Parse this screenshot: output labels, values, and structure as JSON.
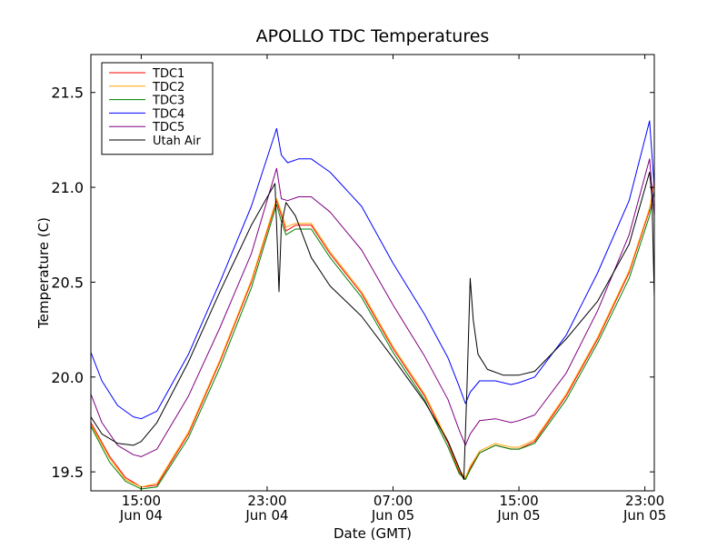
{
  "chart_data": {
    "type": "line",
    "title": "APOLLO TDC Temperatures",
    "xlabel": "Date (GMT)",
    "ylabel": "Temperature (C)",
    "x_unit": "hours since Jun 04 00:00 GMT",
    "xlim": [
      11.8,
      47.6
    ],
    "ylim": [
      19.4,
      21.7
    ],
    "grid": false,
    "legend_position": "top-left",
    "x_ticks": [
      {
        "value": 15,
        "time": "15:00",
        "date": "Jun 04"
      },
      {
        "value": 23,
        "time": "23:00",
        "date": "Jun 04"
      },
      {
        "value": 31,
        "time": "07:00",
        "date": "Jun 05"
      },
      {
        "value": 39,
        "time": "15:00",
        "date": "Jun 05"
      },
      {
        "value": 47,
        "time": "23:00",
        "date": "Jun 05"
      }
    ],
    "y_ticks": [
      {
        "value": 19.5,
        "label": "19.5"
      },
      {
        "value": 20.0,
        "label": "20.0"
      },
      {
        "value": 20.5,
        "label": "20.5"
      },
      {
        "value": 21.0,
        "label": "21.0"
      },
      {
        "value": 21.5,
        "label": "21.5"
      }
    ],
    "series": [
      {
        "name": "TDC1",
        "color": "#ff0000",
        "x": [
          11.8,
          13,
          14,
          15,
          16,
          18,
          20,
          22,
          23.6,
          23.9,
          24.2,
          24.8,
          25.8,
          27,
          29,
          31,
          33,
          34.5,
          35.2,
          35.6,
          35.9,
          36.5,
          37.5,
          38.5,
          39,
          40,
          42,
          44,
          46,
          47.3,
          47.6
        ],
        "y": [
          19.76,
          19.58,
          19.47,
          19.42,
          19.43,
          19.7,
          20.08,
          20.5,
          20.93,
          20.85,
          20.77,
          20.8,
          20.8,
          20.65,
          20.44,
          20.15,
          19.9,
          19.65,
          19.5,
          19.46,
          19.52,
          19.6,
          19.64,
          19.62,
          19.62,
          19.66,
          19.9,
          20.2,
          20.55,
          20.88,
          21.03
        ]
      },
      {
        "name": "TDC2",
        "color": "#ffa500",
        "x": [
          11.8,
          13,
          14,
          15,
          16,
          18,
          20,
          22,
          23.6,
          23.9,
          24.2,
          24.8,
          25.8,
          27,
          29,
          31,
          33,
          34.5,
          35.2,
          35.6,
          35.9,
          36.5,
          37.5,
          38.5,
          39,
          40,
          42,
          44,
          46,
          47.3,
          47.6
        ],
        "y": [
          19.75,
          19.57,
          19.46,
          19.42,
          19.44,
          19.71,
          20.09,
          20.51,
          20.94,
          20.87,
          20.79,
          20.81,
          20.81,
          20.66,
          20.45,
          20.16,
          19.91,
          19.66,
          19.51,
          19.47,
          19.53,
          19.61,
          19.65,
          19.63,
          19.63,
          19.67,
          19.91,
          20.21,
          20.56,
          20.89,
          21.02
        ]
      },
      {
        "name": "TDC3",
        "color": "#008000",
        "x": [
          11.8,
          13,
          14,
          15,
          16,
          18,
          20,
          22,
          23.6,
          23.9,
          24.2,
          24.8,
          25.8,
          27,
          29,
          31,
          33,
          34.5,
          35.2,
          35.6,
          35.9,
          36.5,
          37.5,
          38.5,
          39,
          40,
          42,
          44,
          46,
          47.3,
          47.6
        ],
        "y": [
          19.74,
          19.55,
          19.45,
          19.41,
          19.42,
          19.68,
          20.05,
          20.47,
          20.91,
          20.82,
          20.75,
          20.78,
          20.78,
          20.63,
          20.42,
          20.13,
          19.88,
          19.63,
          19.49,
          19.46,
          19.51,
          19.6,
          19.64,
          19.62,
          19.62,
          19.65,
          19.88,
          20.18,
          20.52,
          20.85,
          20.98
        ]
      },
      {
        "name": "TDC4",
        "color": "#0000ff",
        "x": [
          11.8,
          12.5,
          13.5,
          14.5,
          15,
          16,
          18,
          20,
          22,
          23.6,
          23.9,
          24.3,
          25,
          25.8,
          27,
          29,
          31,
          33,
          34.5,
          35.2,
          35.6,
          35.9,
          36.5,
          37.5,
          38.5,
          39,
          40,
          42,
          44,
          46,
          47.3,
          47.6
        ],
        "y": [
          20.13,
          19.98,
          19.85,
          19.79,
          19.78,
          19.82,
          20.12,
          20.5,
          20.9,
          21.31,
          21.17,
          21.13,
          21.15,
          21.15,
          21.08,
          20.9,
          20.6,
          20.33,
          20.1,
          19.95,
          19.86,
          19.92,
          19.98,
          19.98,
          19.96,
          19.97,
          20.0,
          20.22,
          20.55,
          20.93,
          21.35,
          21.0
        ]
      },
      {
        "name": "TDC5",
        "color": "#800080",
        "x": [
          11.8,
          12.5,
          13.5,
          14.5,
          15,
          16,
          18,
          20,
          22,
          23.6,
          23.9,
          24.3,
          25,
          25.8,
          27,
          29,
          31,
          33,
          34.5,
          35.2,
          35.6,
          35.9,
          36.5,
          37.5,
          38.5,
          39,
          40,
          42,
          44,
          46,
          47.3,
          47.6
        ],
        "y": [
          19.91,
          19.76,
          19.64,
          19.59,
          19.58,
          19.62,
          19.9,
          20.26,
          20.65,
          21.1,
          20.94,
          20.93,
          20.95,
          20.95,
          20.87,
          20.67,
          20.38,
          20.11,
          19.88,
          19.72,
          19.64,
          19.7,
          19.77,
          19.78,
          19.76,
          19.77,
          19.8,
          20.02,
          20.35,
          20.75,
          21.15,
          20.85
        ]
      },
      {
        "name": "Utah Air",
        "color": "#000000",
        "x": [
          11.8,
          12.5,
          13.5,
          14.5,
          15,
          16,
          18,
          20,
          22,
          23.5,
          23.65,
          23.75,
          23.9,
          24.2,
          24.8,
          25.8,
          27,
          29,
          31,
          33,
          34.5,
          35.2,
          35.5,
          35.7,
          35.9,
          36.1,
          36.4,
          37,
          38,
          39,
          40,
          42,
          44,
          46,
          47.3,
          47.45,
          47.6
        ],
        "y": [
          19.79,
          19.7,
          19.65,
          19.64,
          19.66,
          19.76,
          20.08,
          20.45,
          20.8,
          21.02,
          20.7,
          20.45,
          20.8,
          20.92,
          20.85,
          20.63,
          20.48,
          20.32,
          20.1,
          19.87,
          19.66,
          19.52,
          19.46,
          19.95,
          20.52,
          20.3,
          20.12,
          20.04,
          20.01,
          20.01,
          20.03,
          20.2,
          20.4,
          20.7,
          21.08,
          20.95,
          20.42
        ]
      }
    ]
  }
}
